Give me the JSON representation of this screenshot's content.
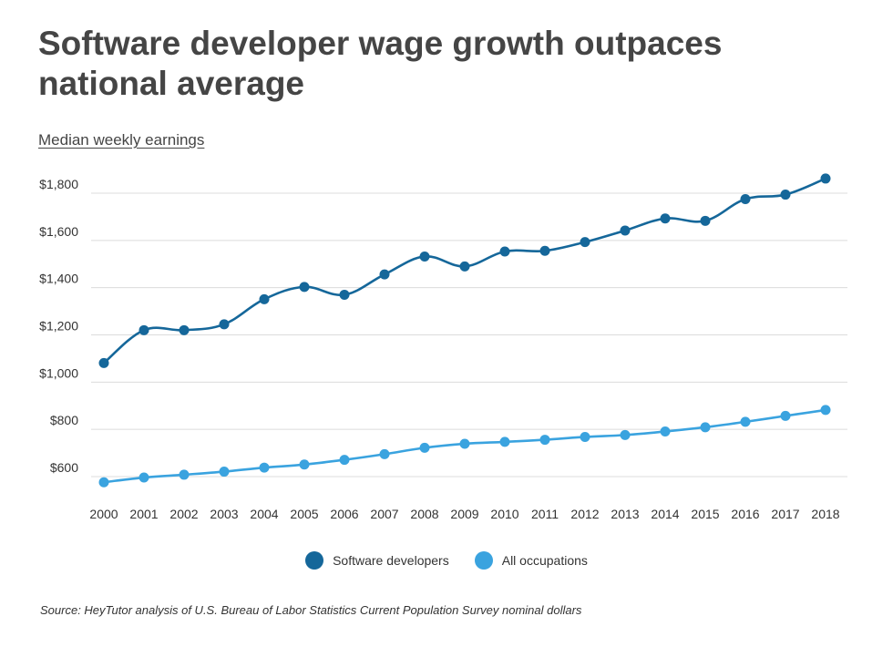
{
  "chart_data": {
    "type": "line",
    "title": "Software developer wage growth outpaces national average",
    "subtitle": "Median weekly earnings",
    "source": "Source: HeyTutor analysis of U.S. Bureau of Labor Statistics Current Population Survey nominal dollars",
    "x": [
      "2000",
      "2001",
      "2002",
      "2003",
      "2004",
      "2005",
      "2006",
      "2007",
      "2008",
      "2009",
      "2010",
      "2011",
      "2012",
      "2013",
      "2014",
      "2015",
      "2016",
      "2017",
      "2018"
    ],
    "y_ticks": [
      {
        "value": 600,
        "label": "$600"
      },
      {
        "value": 800,
        "label": "$800"
      },
      {
        "value": 1000,
        "label": "$1,000"
      },
      {
        "value": 1200,
        "label": "$1,200"
      },
      {
        "value": 1400,
        "label": "$1,400"
      },
      {
        "value": 1600,
        "label": "$1,600"
      },
      {
        "value": 1800,
        "label": "$1,800"
      }
    ],
    "ylim": [
      600,
      1800
    ],
    "grid": true,
    "legend_position": "bottom",
    "series": [
      {
        "name": "Software developers",
        "color": "#15679a",
        "values": [
          1081,
          1220,
          1220,
          1245,
          1351,
          1403,
          1370,
          1456,
          1532,
          1490,
          1553,
          1556,
          1593,
          1642,
          1693,
          1683,
          1775,
          1794,
          1862
        ]
      },
      {
        "name": "All occupations",
        "color": "#3aa3df",
        "values": [
          576,
          596,
          608,
          621,
          638,
          651,
          671,
          695,
          722,
          739,
          747,
          756,
          768,
          776,
          791,
          809,
          832,
          857,
          882
        ]
      }
    ]
  }
}
